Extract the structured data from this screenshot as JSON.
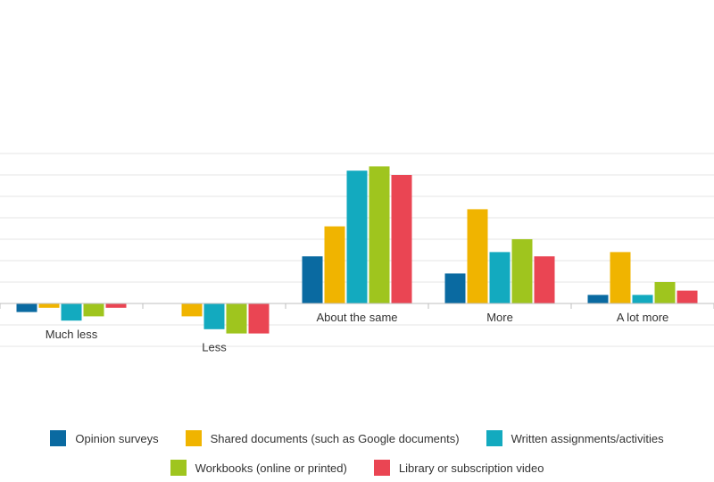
{
  "chart_data": {
    "type": "bar",
    "categories": [
      "Much less",
      "Less",
      "About the same",
      "More",
      "A lot more"
    ],
    "series": [
      {
        "name": "Opinion surveys",
        "color": "#0a6aa1",
        "values": [
          -2,
          0,
          11,
          7,
          2
        ]
      },
      {
        "name": "Shared documents (such as Google documents)",
        "color": "#f0b400",
        "values": [
          -1,
          -3,
          18,
          22,
          12
        ]
      },
      {
        "name": "Written assignments/activities",
        "color": "#13aabf",
        "values": [
          -4,
          -6,
          31,
          12,
          2
        ]
      },
      {
        "name": "Workbooks (online or printed)",
        "color": "#9fc51e",
        "values": [
          -3,
          -7,
          32,
          15,
          5
        ]
      },
      {
        "name": "Library or subscription video",
        "color": "#ea4553",
        "values": [
          -1,
          -7,
          30,
          11,
          3
        ]
      }
    ],
    "ylim": [
      -10,
      35
    ],
    "grid": true,
    "legend_position": "bottom"
  }
}
